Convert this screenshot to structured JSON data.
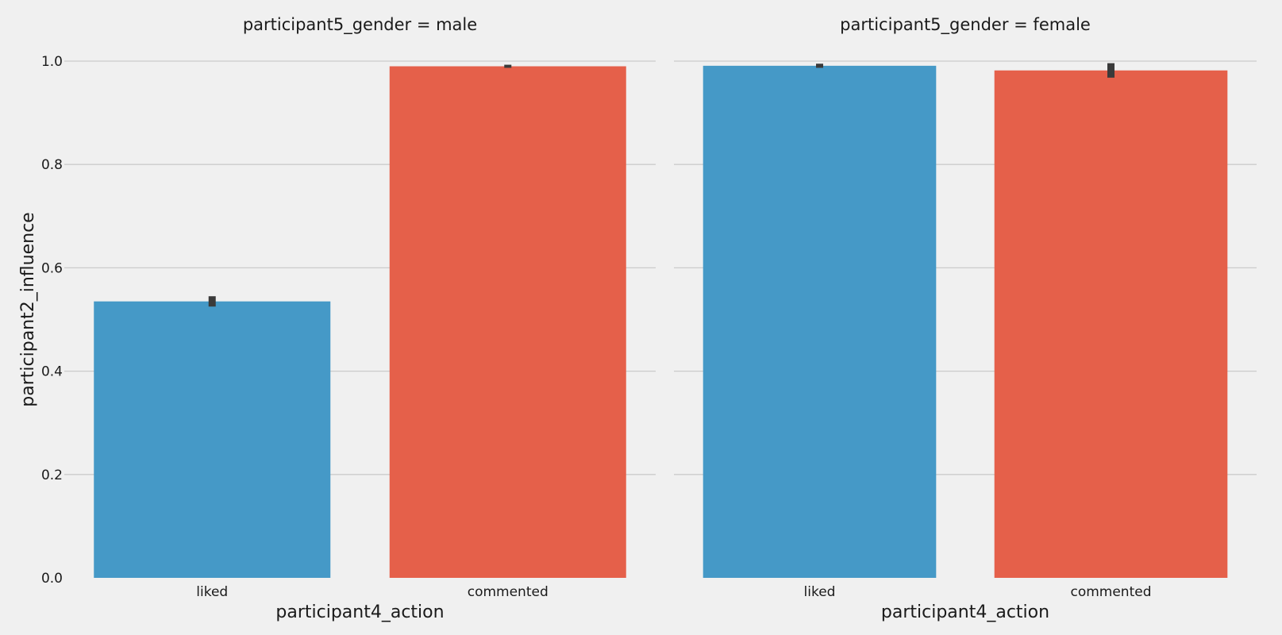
{
  "chart_data": {
    "type": "bar",
    "facet_variable": "participant5_gender",
    "facets": [
      {
        "title": "participant5_gender = male",
        "categories": [
          "liked",
          "commented"
        ],
        "values": [
          0.535,
          0.99
        ],
        "error": [
          [
            0.525,
            0.545
          ],
          [
            0.987,
            0.993
          ]
        ]
      },
      {
        "title": "participant5_gender = female",
        "categories": [
          "liked",
          "commented"
        ],
        "values": [
          0.991,
          0.982
        ],
        "error": [
          [
            0.987,
            0.995
          ],
          [
            0.968,
            0.996
          ]
        ]
      }
    ],
    "xlabel": "participant4_action",
    "ylabel": "participant2_influence",
    "ylim": [
      0,
      1.0
    ],
    "yticks": [
      "0.0",
      "0.2",
      "0.4",
      "0.6",
      "0.8",
      "1.0"
    ],
    "colors": [
      "#4599c7",
      "#e5604a"
    ],
    "errorbar_color": "#3a3a3a",
    "grid": "horizontal",
    "background": "#f0f0f0"
  }
}
